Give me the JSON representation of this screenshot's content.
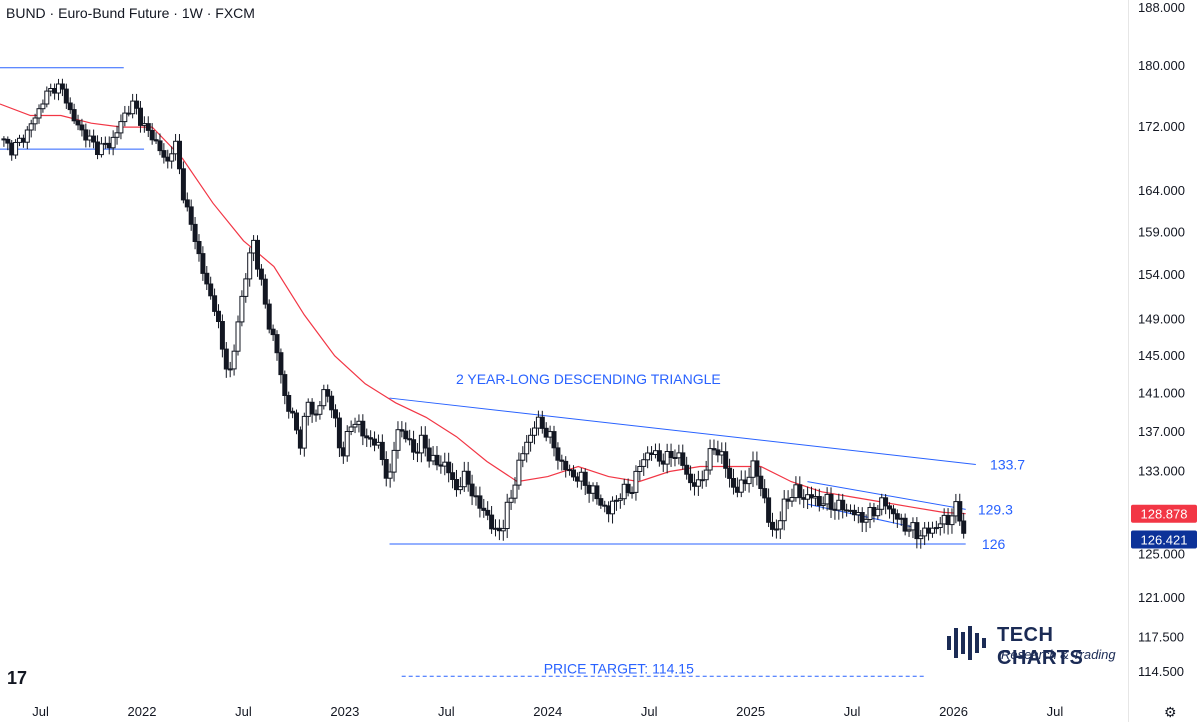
{
  "header": {
    "title": "BUND · Euro-Bund Future · 1W · FXCM"
  },
  "chart_data": {
    "type": "candlestick",
    "symbol": "BUND",
    "instrument": "Euro-Bund Future",
    "interval": "1W",
    "source": "FXCM",
    "y_scale": "log",
    "ylim": [
      114.0,
      188.0
    ],
    "y_ticks": [
      "188.000",
      "180.000",
      "172.000",
      "164.000",
      "159.000",
      "154.000",
      "149.000",
      "145.000",
      "141.000",
      "137.000",
      "133.000",
      "125.000",
      "121.000",
      "117.500",
      "114.500"
    ],
    "x_ticks": [
      "Jul",
      "2022",
      "Jul",
      "2023",
      "Jul",
      "2024",
      "Jul",
      "2025",
      "Jul",
      "2026",
      "Jul"
    ],
    "x_tick_dates": [
      2021.5,
      2022.0,
      2022.5,
      2023.0,
      2023.5,
      2024.0,
      2024.5,
      2025.0,
      2025.5,
      2026.0,
      2026.5
    ],
    "xlim": [
      2021.3,
      2026.86
    ],
    "close_path": [
      [
        2021.3,
        170.5
      ],
      [
        2021.36,
        169.2
      ],
      [
        2021.42,
        170.8
      ],
      [
        2021.48,
        173.5
      ],
      [
        2021.52,
        176.0
      ],
      [
        2021.58,
        177.5
      ],
      [
        2021.62,
        176.2
      ],
      [
        2021.66,
        173.0
      ],
      [
        2021.72,
        171.0
      ],
      [
        2021.78,
        169.3
      ],
      [
        2021.84,
        169.8
      ],
      [
        2021.88,
        171.5
      ],
      [
        2021.92,
        174.0
      ],
      [
        2021.96,
        175.0
      ],
      [
        2022.0,
        172.5
      ],
      [
        2022.04,
        171.0
      ],
      [
        2022.08,
        169.8
      ],
      [
        2022.12,
        167.0
      ],
      [
        2022.16,
        170.5
      ],
      [
        2022.2,
        164.0
      ],
      [
        2022.24,
        160.0
      ],
      [
        2022.28,
        156.5
      ],
      [
        2022.32,
        152.5
      ],
      [
        2022.36,
        150.5
      ],
      [
        2022.4,
        145.0
      ],
      [
        2022.44,
        143.0
      ],
      [
        2022.48,
        150.0
      ],
      [
        2022.52,
        155.0
      ],
      [
        2022.55,
        158.0
      ],
      [
        2022.58,
        154.0
      ],
      [
        2022.62,
        149.0
      ],
      [
        2022.66,
        146.0
      ],
      [
        2022.7,
        141.0
      ],
      [
        2022.74,
        138.5
      ],
      [
        2022.78,
        136.0
      ],
      [
        2022.82,
        140.0
      ],
      [
        2022.86,
        138.5
      ],
      [
        2022.9,
        141.5
      ],
      [
        2022.94,
        139.5
      ],
      [
        2022.98,
        134.5
      ],
      [
        2023.02,
        137.0
      ],
      [
        2023.06,
        138.5
      ],
      [
        2023.1,
        136.0
      ],
      [
        2023.14,
        136.5
      ],
      [
        2023.18,
        134.5
      ],
      [
        2023.22,
        132.0
      ],
      [
        2023.26,
        137.5
      ],
      [
        2023.3,
        136.5
      ],
      [
        2023.34,
        135.0
      ],
      [
        2023.38,
        136.0
      ],
      [
        2023.42,
        134.5
      ],
      [
        2023.46,
        133.5
      ],
      [
        2023.5,
        134.0
      ],
      [
        2023.54,
        131.0
      ],
      [
        2023.58,
        132.5
      ],
      [
        2023.62,
        131.5
      ],
      [
        2023.66,
        129.5
      ],
      [
        2023.7,
        129.0
      ],
      [
        2023.74,
        126.8
      ],
      [
        2023.78,
        128.0
      ],
      [
        2023.82,
        130.5
      ],
      [
        2023.86,
        134.0
      ],
      [
        2023.9,
        136.0
      ],
      [
        2023.94,
        138.0
      ],
      [
        2023.98,
        137.5
      ],
      [
        2024.02,
        136.0
      ],
      [
        2024.06,
        134.0
      ],
      [
        2024.1,
        133.0
      ],
      [
        2024.14,
        132.5
      ],
      [
        2024.18,
        132.0
      ],
      [
        2024.22,
        131.0
      ],
      [
        2024.26,
        130.0
      ],
      [
        2024.3,
        129.0
      ],
      [
        2024.34,
        130.5
      ],
      [
        2024.38,
        131.0
      ],
      [
        2024.42,
        131.5
      ],
      [
        2024.46,
        134.0
      ],
      [
        2024.5,
        135.0
      ],
      [
        2024.54,
        134.5
      ],
      [
        2024.58,
        134.0
      ],
      [
        2024.62,
        135.0
      ],
      [
        2024.66,
        134.0
      ],
      [
        2024.7,
        132.0
      ],
      [
        2024.74,
        131.5
      ],
      [
        2024.78,
        133.5
      ],
      [
        2024.82,
        135.5
      ],
      [
        2024.86,
        134.5
      ],
      [
        2024.9,
        132.0
      ],
      [
        2024.94,
        131.0
      ],
      [
        2024.98,
        132.5
      ],
      [
        2025.02,
        133.5
      ],
      [
        2025.06,
        131.0
      ],
      [
        2025.1,
        127.0
      ],
      [
        2025.14,
        128.0
      ],
      [
        2025.18,
        130.5
      ],
      [
        2025.22,
        131.0
      ],
      [
        2025.26,
        130.5
      ],
      [
        2025.3,
        130.5
      ],
      [
        2025.34,
        130.0
      ],
      [
        2025.38,
        130.0
      ],
      [
        2025.42,
        129.5
      ],
      [
        2025.46,
        129.5
      ],
      [
        2025.5,
        129.0
      ],
      [
        2025.54,
        128.5
      ],
      [
        2025.58,
        128.5
      ],
      [
        2025.62,
        129.5
      ],
      [
        2025.66,
        130.0
      ],
      [
        2025.7,
        129.0
      ],
      [
        2025.74,
        128.0
      ],
      [
        2025.78,
        127.5
      ],
      [
        2025.82,
        127.0
      ],
      [
        2025.86,
        127.0
      ],
      [
        2025.9,
        127.5
      ],
      [
        2025.94,
        128.0
      ],
      [
        2025.98,
        128.5
      ],
      [
        2026.02,
        129.5
      ],
      [
        2026.06,
        126.421
      ]
    ],
    "moving_average": {
      "color": "#f23645",
      "last_value": 128.878,
      "path": [
        [
          2021.3,
          175.0
        ],
        [
          2021.45,
          173.5
        ],
        [
          2021.6,
          173.5
        ],
        [
          2021.75,
          172.5
        ],
        [
          2021.9,
          172.0
        ],
        [
          2022.05,
          172.0
        ],
        [
          2022.2,
          168.0
        ],
        [
          2022.35,
          162.5
        ],
        [
          2022.5,
          158.0
        ],
        [
          2022.65,
          155.0
        ],
        [
          2022.8,
          149.5
        ],
        [
          2022.95,
          145.0
        ],
        [
          2023.1,
          142.0
        ],
        [
          2023.25,
          140.0
        ],
        [
          2023.4,
          138.5
        ],
        [
          2023.55,
          136.5
        ],
        [
          2023.7,
          134.0
        ],
        [
          2023.85,
          132.0
        ],
        [
          2024.0,
          132.5
        ],
        [
          2024.15,
          133.5
        ],
        [
          2024.3,
          132.5
        ],
        [
          2024.45,
          132.0
        ],
        [
          2024.6,
          133.0
        ],
        [
          2024.75,
          133.5
        ],
        [
          2024.9,
          133.5
        ],
        [
          2025.05,
          133.5
        ],
        [
          2025.2,
          132.0
        ],
        [
          2025.35,
          131.0
        ],
        [
          2025.5,
          130.5
        ],
        [
          2025.65,
          130.0
        ],
        [
          2025.8,
          129.5
        ],
        [
          2025.95,
          129.0
        ],
        [
          2026.06,
          128.878
        ]
      ]
    },
    "annotations": [
      {
        "text": "2 YEAR-LONG DESCENDING TRIANGLE",
        "x": 2024.2,
        "y": 142.5,
        "color": "#2962ff"
      },
      {
        "text": "133.7",
        "x": 2026.18,
        "y": 133.7,
        "color": "#2962ff"
      },
      {
        "text": "129.3",
        "x": 2026.12,
        "y": 129.3,
        "color": "#2962ff"
      },
      {
        "text": "126",
        "x": 2026.14,
        "y": 126.0,
        "color": "#2962ff"
      },
      {
        "text": "PRICE TARGET: 114.15",
        "x": 2024.35,
        "y": 114.8,
        "color": "#2962ff"
      }
    ],
    "trendlines": [
      {
        "x": [
          2021.3,
          2021.91
        ],
        "y": [
          179.8,
          179.8
        ],
        "style": "solid",
        "color": "#2962ff"
      },
      {
        "x": [
          2021.3,
          2022.01
        ],
        "y": [
          169.2,
          169.2
        ],
        "style": "solid",
        "color": "#2962ff"
      },
      {
        "x": [
          2023.22,
          2026.11
        ],
        "y": [
          140.5,
          133.7
        ],
        "style": "solid",
        "color": "#2962ff"
      },
      {
        "x": [
          2023.22,
          2026.06
        ],
        "y": [
          126.0,
          126.0
        ],
        "style": "solid",
        "color": "#2962ff"
      },
      {
        "x": [
          2025.28,
          2026.06
        ],
        "y": [
          132.0,
          129.3
        ],
        "style": "solid",
        "color": "#2962ff"
      },
      {
        "x": [
          2025.28,
          2025.8
        ],
        "y": [
          129.8,
          127.6
        ],
        "style": "solid",
        "color": "#2962ff"
      },
      {
        "x": [
          2023.28,
          2025.86
        ],
        "y": [
          114.15,
          114.15
        ],
        "style": "dashed",
        "color": "#2962ff"
      }
    ],
    "price_labels": [
      {
        "value": "128.878",
        "color": "#f23645"
      },
      {
        "value": "126.421",
        "color": "#0c3299"
      }
    ]
  },
  "branding": {
    "name": "TECH CHARTS",
    "tagline": "Research & Trading",
    "platform_mark": "17"
  },
  "colors": {
    "accent": "#2962ff",
    "ma": "#f23645",
    "last_price_bg": "#0c3299",
    "ma_label_bg": "#f23645"
  },
  "icons": {
    "settings": "gear-icon"
  }
}
